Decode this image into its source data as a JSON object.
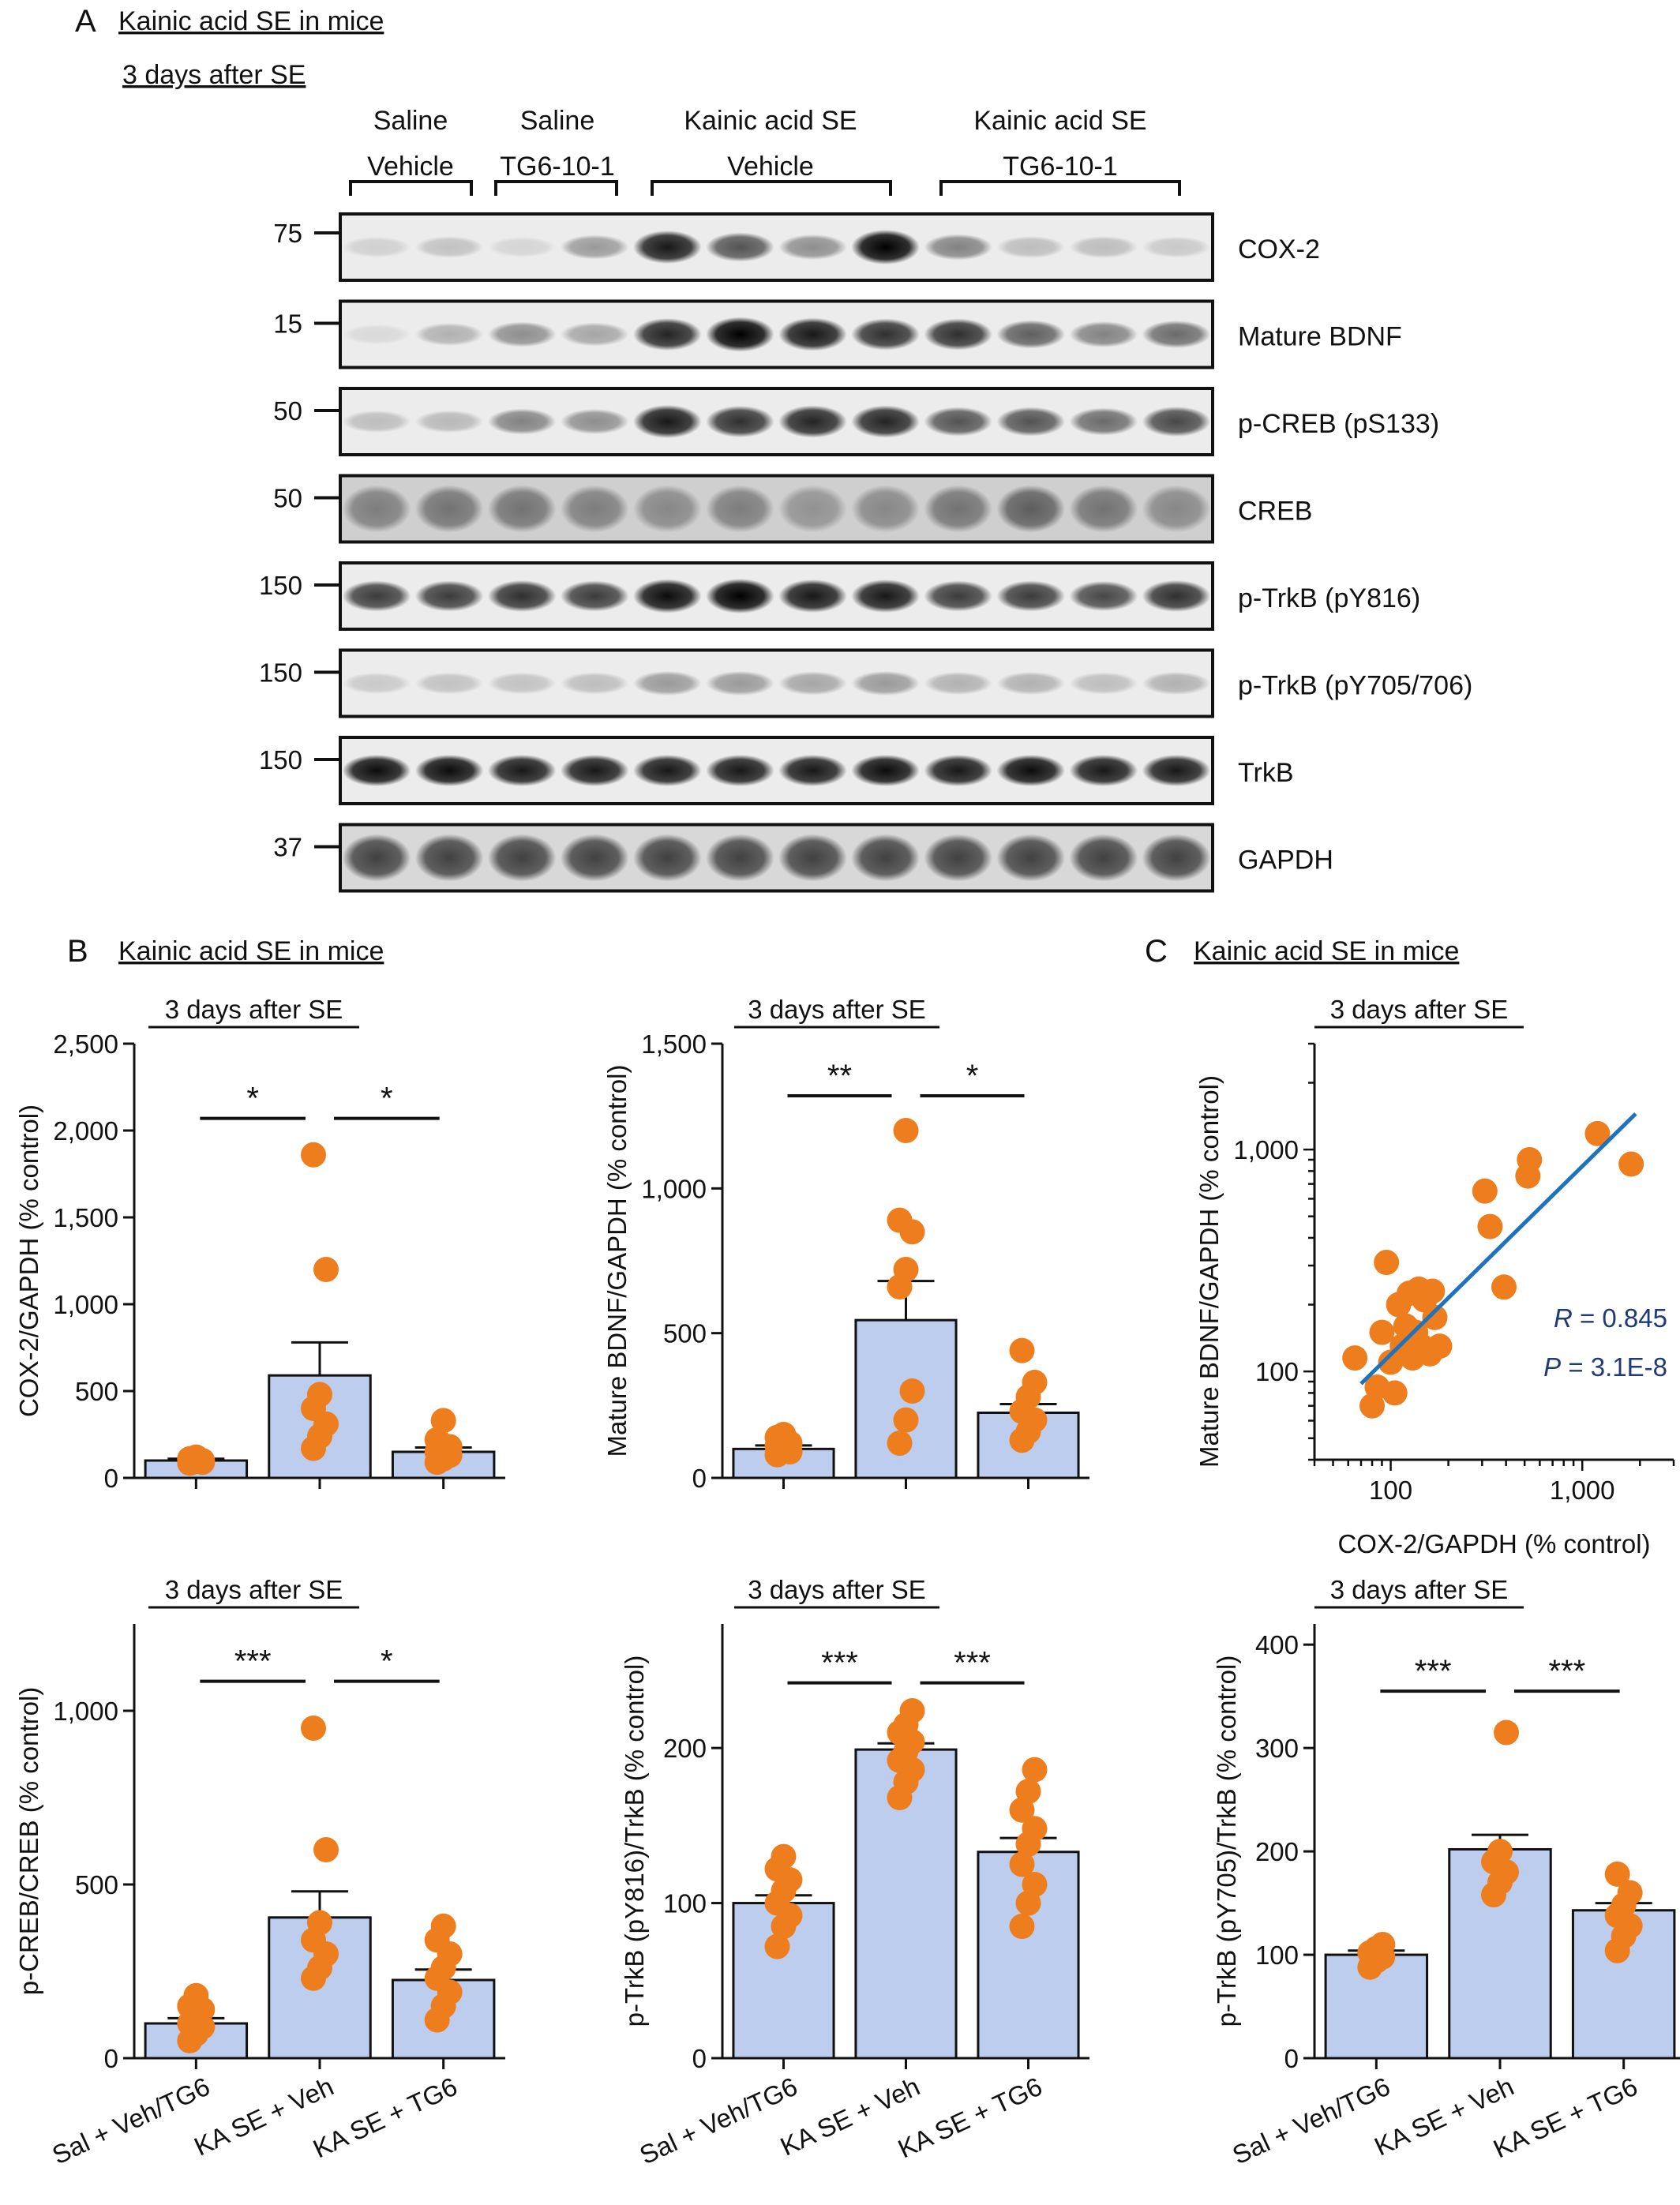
{
  "panel_a": {
    "letter": "A",
    "title": "Kainic acid SE in mice",
    "subtitle": "3 days after SE",
    "groups": [
      {
        "line1": "Saline",
        "line2": "Vehicle"
      },
      {
        "line1": "Saline",
        "line2": "TG6-10-1"
      },
      {
        "line1": "Kainic acid SE",
        "line2": "Vehicle"
      },
      {
        "line1": "Kainic acid SE",
        "line2": "TG6-10-1"
      }
    ],
    "blots": [
      {
        "label": "COX-2",
        "marker": "75",
        "intensity": [
          0.12,
          0.18,
          0.1,
          0.35,
          0.9,
          0.65,
          0.4,
          1.0,
          0.45,
          0.2,
          0.2,
          0.15
        ]
      },
      {
        "label": "Mature BDNF",
        "marker": "15",
        "intensity": [
          0.08,
          0.25,
          0.4,
          0.3,
          0.85,
          1.0,
          0.9,
          0.8,
          0.8,
          0.6,
          0.45,
          0.55
        ]
      },
      {
        "label": "p-CREB (pS133)",
        "marker": "50",
        "intensity": [
          0.2,
          0.22,
          0.45,
          0.4,
          0.9,
          0.8,
          0.85,
          0.85,
          0.65,
          0.65,
          0.55,
          0.7
        ]
      },
      {
        "label": "CREB",
        "marker": "50",
        "intensity": [
          0.4,
          0.45,
          0.45,
          0.4,
          0.35,
          0.4,
          0.3,
          0.35,
          0.45,
          0.55,
          0.45,
          0.35
        ]
      },
      {
        "label": "p-TrkB (pY816)",
        "marker": "150",
        "intensity": [
          0.75,
          0.75,
          0.8,
          0.75,
          0.95,
          1.0,
          0.9,
          0.9,
          0.75,
          0.75,
          0.7,
          0.8
        ]
      },
      {
        "label": "p-TrkB (pY705/706)",
        "marker": "150",
        "intensity": [
          0.15,
          0.18,
          0.18,
          0.2,
          0.35,
          0.35,
          0.3,
          0.35,
          0.25,
          0.25,
          0.2,
          0.25
        ]
      },
      {
        "label": "TrkB",
        "marker": "150",
        "intensity": [
          0.95,
          0.95,
          0.9,
          0.9,
          0.9,
          0.9,
          0.9,
          0.95,
          0.9,
          0.95,
          0.9,
          0.9
        ]
      },
      {
        "label": "GAPDH",
        "marker": "37",
        "intensity": [
          0.7,
          0.7,
          0.7,
          0.7,
          0.7,
          0.7,
          0.7,
          0.7,
          0.7,
          0.7,
          0.7,
          0.7
        ]
      }
    ]
  },
  "panel_b": {
    "letter": "B",
    "title": "Kainic acid SE in mice"
  },
  "panel_c": {
    "letter": "C",
    "title": "Kainic acid SE in mice"
  },
  "colors": {
    "bar_fill": "#bccdee",
    "dot": "#ee7d1d",
    "fit_line": "#1f72be",
    "stat_text": "#1f3a78"
  },
  "chart_data": [
    {
      "type": "bar",
      "subtitle": "3 days after SE",
      "ylabel": "COX-2/GAPDH (% control)",
      "categories": [
        "Sal + Veh/TG6",
        "KA SE + Veh",
        "KA SE + TG6"
      ],
      "show_xticklabels": false,
      "ylim": [
        0,
        2500
      ],
      "yticks": [
        0,
        500,
        1000,
        1500,
        2000,
        2500
      ],
      "yticklabels": [
        "0",
        "500",
        "1,000",
        "1,500",
        "2,000",
        "2,500"
      ],
      "means": [
        100,
        590,
        150
      ],
      "errors": [
        10,
        190,
        25
      ],
      "points": [
        [
          85,
          95,
          100,
          110,
          120,
          90,
          105,
          95
        ],
        [
          170,
          240,
          310,
          400,
          480,
          1200,
          1860
        ],
        [
          90,
          110,
          130,
          150,
          160,
          180,
          220,
          330
        ]
      ],
      "sig": [
        {
          "from": 0,
          "to": 1,
          "label": "*"
        },
        {
          "from": 1,
          "to": 2,
          "label": "*"
        }
      ],
      "sig_level": 2070
    },
    {
      "type": "bar",
      "subtitle": "3 days after SE",
      "ylabel": "Mature BDNF/GAPDH (% control)",
      "categories": [
        "Sal + Veh/TG6",
        "KA SE + Veh",
        "KA SE + TG6"
      ],
      "show_xticklabels": false,
      "ylim": [
        0,
        1500
      ],
      "yticks": [
        0,
        500,
        1000,
        1500
      ],
      "yticklabels": [
        "0",
        "500",
        "1,000",
        "1,500"
      ],
      "means": [
        100,
        545,
        225
      ],
      "errors": [
        12,
        135,
        30
      ],
      "points": [
        [
          80,
          100,
          120,
          140,
          150,
          90,
          110,
          130
        ],
        [
          120,
          200,
          300,
          660,
          720,
          850,
          890,
          1200
        ],
        [
          130,
          160,
          200,
          230,
          280,
          330,
          440
        ]
      ],
      "sig": [
        {
          "from": 0,
          "to": 1,
          "label": "**"
        },
        {
          "from": 1,
          "to": 2,
          "label": "*"
        }
      ],
      "sig_level": 1320
    },
    {
      "type": "scatter",
      "subtitle": "3 days after SE",
      "xlabel": "COX-2/GAPDH (% control)",
      "ylabel": "Mature BDNF/GAPDH (% control)",
      "x_scale": "log",
      "y_scale": "log",
      "xlim": [
        40,
        3000
      ],
      "ylim": [
        40,
        3000
      ],
      "xticks": [
        100,
        1000
      ],
      "xticklabels": [
        "100",
        "1,000"
      ],
      "yticks": [
        100,
        1000
      ],
      "yticklabels": [
        "100",
        "1,000"
      ],
      "x": [
        65,
        80,
        85,
        90,
        95,
        100,
        105,
        110,
        115,
        120,
        125,
        130,
        135,
        140,
        145,
        150,
        160,
        165,
        170,
        180,
        310,
        330,
        390,
        520,
        530,
        1200,
        1800
      ],
      "y": [
        115,
        70,
        85,
        150,
        310,
        110,
        80,
        200,
        130,
        160,
        225,
        115,
        150,
        235,
        130,
        210,
        120,
        230,
        175,
        130,
        650,
        450,
        240,
        760,
        900,
        1180,
        860
      ],
      "fit": {
        "x": [
          70,
          1900
        ],
        "y": [
          88,
          1450
        ]
      },
      "annotations": [
        {
          "var": "R",
          "text": " = 0.845"
        },
        {
          "var": "P",
          "text": " = 3.1E-8"
        }
      ]
    },
    {
      "type": "bar",
      "subtitle": "3 days after SE",
      "ylabel": "p-CREB/CREB (% control)",
      "categories": [
        "Sal + Veh/TG6",
        "KA SE + Veh",
        "KA SE + TG6"
      ],
      "show_xticklabels": true,
      "ylim": [
        0,
        1250
      ],
      "yticks": [
        0,
        500,
        1000
      ],
      "yticklabels": [
        "0",
        "500",
        "1,000"
      ],
      "means": [
        100,
        405,
        225
      ],
      "errors": [
        15,
        75,
        30
      ],
      "points": [
        [
          50,
          70,
          90,
          100,
          120,
          140,
          150,
          180
        ],
        [
          230,
          260,
          300,
          340,
          390,
          600,
          950
        ],
        [
          110,
          150,
          190,
          230,
          260,
          300,
          340,
          380
        ]
      ],
      "sig": [
        {
          "from": 0,
          "to": 1,
          "label": "***"
        },
        {
          "from": 1,
          "to": 2,
          "label": "*"
        }
      ],
      "sig_level": 1085
    },
    {
      "type": "bar",
      "subtitle": "3 days after SE",
      "ylabel": "p-TrkB (pY816)/TrkB (% control)",
      "categories": [
        "Sal + Veh/TG6",
        "KA SE + Veh",
        "KA SE + TG6"
      ],
      "show_xticklabels": true,
      "ylim": [
        0,
        280
      ],
      "yticks": [
        0,
        100,
        200
      ],
      "yticklabels": [
        "0",
        "100",
        "200"
      ],
      "means": [
        100,
        199,
        133
      ],
      "errors": [
        5,
        4,
        9
      ],
      "points": [
        [
          72,
          85,
          92,
          100,
          108,
          115,
          122,
          130
        ],
        [
          168,
          178,
          186,
          192,
          198,
          204,
          210,
          215,
          224
        ],
        [
          85,
          100,
          112,
          125,
          138,
          148,
          160,
          172,
          186
        ]
      ],
      "sig": [
        {
          "from": 0,
          "to": 1,
          "label": "***"
        },
        {
          "from": 1,
          "to": 2,
          "label": "***"
        }
      ],
      "sig_level": 242
    },
    {
      "type": "bar",
      "subtitle": "3 days after SE",
      "ylabel": "p-TrkB (pY705)/TrkB (% control)",
      "categories": [
        "Sal + Veh/TG6",
        "KA SE + Veh",
        "KA SE + TG6"
      ],
      "show_xticklabels": true,
      "ylim": [
        0,
        420
      ],
      "yticks": [
        0,
        100,
        200,
        300,
        400
      ],
      "yticklabels": [
        "0",
        "100",
        "200",
        "300",
        "400"
      ],
      "means": [
        100,
        202,
        143
      ],
      "errors": [
        4,
        14,
        7
      ],
      "points": [
        [
          88,
          94,
          98,
          102,
          106,
          110
        ],
        [
          158,
          170,
          180,
          190,
          200,
          315
        ],
        [
          104,
          118,
          128,
          138,
          148,
          160,
          178
        ]
      ],
      "sig": [
        {
          "from": 0,
          "to": 1,
          "label": "***"
        },
        {
          "from": 1,
          "to": 2,
          "label": "***"
        }
      ],
      "sig_level": 355
    }
  ]
}
